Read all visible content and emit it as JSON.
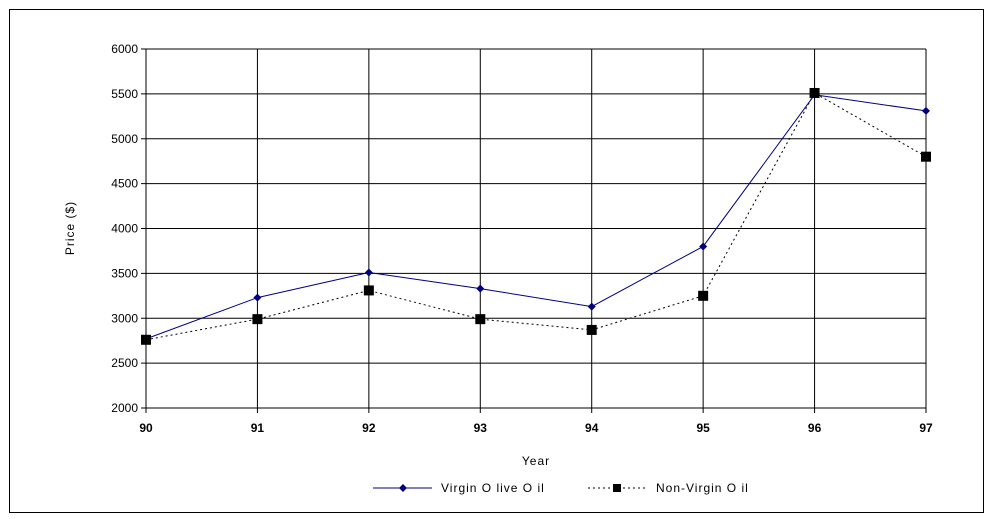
{
  "chart_data": {
    "type": "line",
    "xlabel": "Year",
    "ylabel": "Price ($)",
    "categories": [
      "90",
      "91",
      "92",
      "93",
      "94",
      "95",
      "96",
      "97"
    ],
    "ylim": [
      2000,
      6000
    ],
    "yticks": [
      "6000",
      "5500",
      "5000",
      "4500",
      "4000",
      "3500",
      "3000",
      "2500",
      "2000"
    ],
    "grid": true,
    "legend_position": "bottom",
    "series": [
      {
        "name": "Virgin Olive Oil",
        "values": [
          2770,
          3230,
          3510,
          3330,
          3130,
          3800,
          5490,
          5310
        ],
        "color": "#000080",
        "line": "solid",
        "marker": "diamond"
      },
      {
        "name": "Non-Virgin Oil",
        "values": [
          2760,
          2990,
          3310,
          2990,
          2870,
          3250,
          5510,
          4800
        ],
        "color": "#000000",
        "line": "dotted",
        "marker": "square"
      }
    ]
  },
  "legend": {
    "series1_label": "Virgin O live O il",
    "series2_label": "Non-Virgin O il"
  }
}
